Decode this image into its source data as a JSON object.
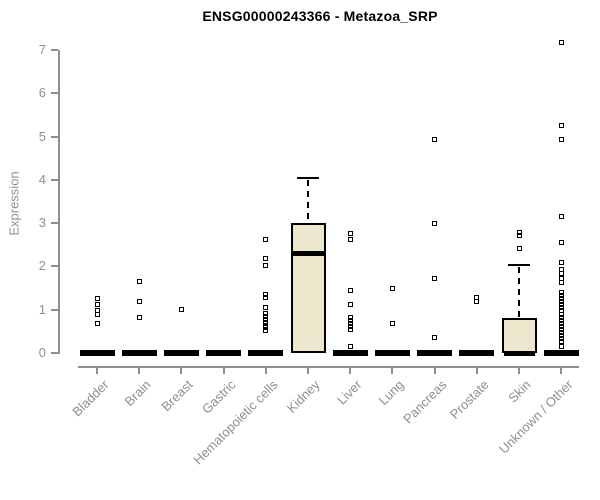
{
  "title": "ENSG00000243366 - Metazoa_SRP",
  "chart_data": {
    "type": "boxplot",
    "title": "ENSG00000243366 - Metazoa_SRP",
    "xlabel": "",
    "ylabel": "Expression",
    "ylim": [
      0,
      7
    ],
    "yticks": [
      0,
      1,
      2,
      3,
      4,
      5,
      6,
      7
    ],
    "grid": "off",
    "box_fill_color": "#ece6cd",
    "box_border_color": "#000000",
    "axis_color": "#8f8f8f",
    "outlier_marker": "open-square",
    "categories": [
      {
        "label": "Bladder",
        "q1": 0,
        "median": 0,
        "q3": 0,
        "whisker_low": 0,
        "whisker_high": 0,
        "outliers": [
          1.27,
          1.13,
          0.99,
          0.88,
          0.69
        ]
      },
      {
        "label": "Brain",
        "q1": 0,
        "median": 0,
        "q3": 0,
        "whisker_low": 0,
        "whisker_high": 0,
        "outliers": [
          1.66,
          1.18,
          0.83
        ]
      },
      {
        "label": "Breast",
        "q1": 0,
        "median": 0,
        "q3": 0,
        "whisker_low": 0,
        "whisker_high": 0,
        "outliers": [
          1.0
        ]
      },
      {
        "label": "Gastric",
        "q1": 0,
        "median": 0,
        "q3": 0,
        "whisker_low": 0,
        "whisker_high": 0,
        "outliers": []
      },
      {
        "label": "Hematopoietic cells",
        "q1": 0,
        "median": 0,
        "q3": 0,
        "whisker_low": 0,
        "whisker_high": 0,
        "outliers": [
          2.63,
          2.19,
          2.03,
          1.34,
          1.29,
          1.06,
          0.92,
          0.85,
          0.78,
          0.71,
          0.64,
          0.58,
          0.51
        ]
      },
      {
        "label": "Kidney",
        "q1": 0,
        "median": 2.3,
        "q3": 3.0,
        "whisker_low": 0,
        "whisker_high": 4.05,
        "outliers": []
      },
      {
        "label": "Liver",
        "q1": 0,
        "median": 0,
        "q3": 0,
        "whisker_low": 0,
        "whisker_high": 0,
        "outliers": [
          2.75,
          2.62,
          1.45,
          1.13,
          0.83,
          0.76,
          0.69,
          0.62,
          0.55,
          0.14
        ]
      },
      {
        "label": "Lung",
        "q1": 0,
        "median": 0,
        "q3": 0,
        "whisker_low": 0,
        "whisker_high": 0,
        "outliers": [
          1.5,
          0.69
        ]
      },
      {
        "label": "Pancreas",
        "q1": 0,
        "median": 0,
        "q3": 0,
        "whisker_low": 0,
        "whisker_high": 0,
        "outliers": [
          4.92,
          2.98,
          1.73,
          0.35
        ]
      },
      {
        "label": "Prostate",
        "q1": 0,
        "median": 0,
        "q3": 0,
        "whisker_low": 0,
        "whisker_high": 0,
        "outliers": [
          1.29,
          1.2
        ]
      },
      {
        "label": "Skin",
        "q1": 0,
        "median": 0,
        "q3": 0.8,
        "whisker_low": 0,
        "whisker_high": 2.03,
        "outliers": [
          2.79,
          2.71,
          2.42
        ]
      },
      {
        "label": "Unknown / Other",
        "q1": 0,
        "median": 0,
        "q3": 0,
        "whisker_low": 0,
        "whisker_high": 0,
        "outliers": [
          7.18,
          5.25,
          4.92,
          3.15,
          2.56,
          2.08,
          1.92,
          1.84,
          1.73,
          1.62,
          1.39,
          1.32,
          1.25,
          1.18,
          1.11,
          1.04,
          0.97,
          0.9,
          0.83,
          0.76,
          0.69,
          0.62,
          0.55,
          0.48,
          0.41,
          0.34,
          0.27,
          0.14
        ]
      }
    ]
  }
}
